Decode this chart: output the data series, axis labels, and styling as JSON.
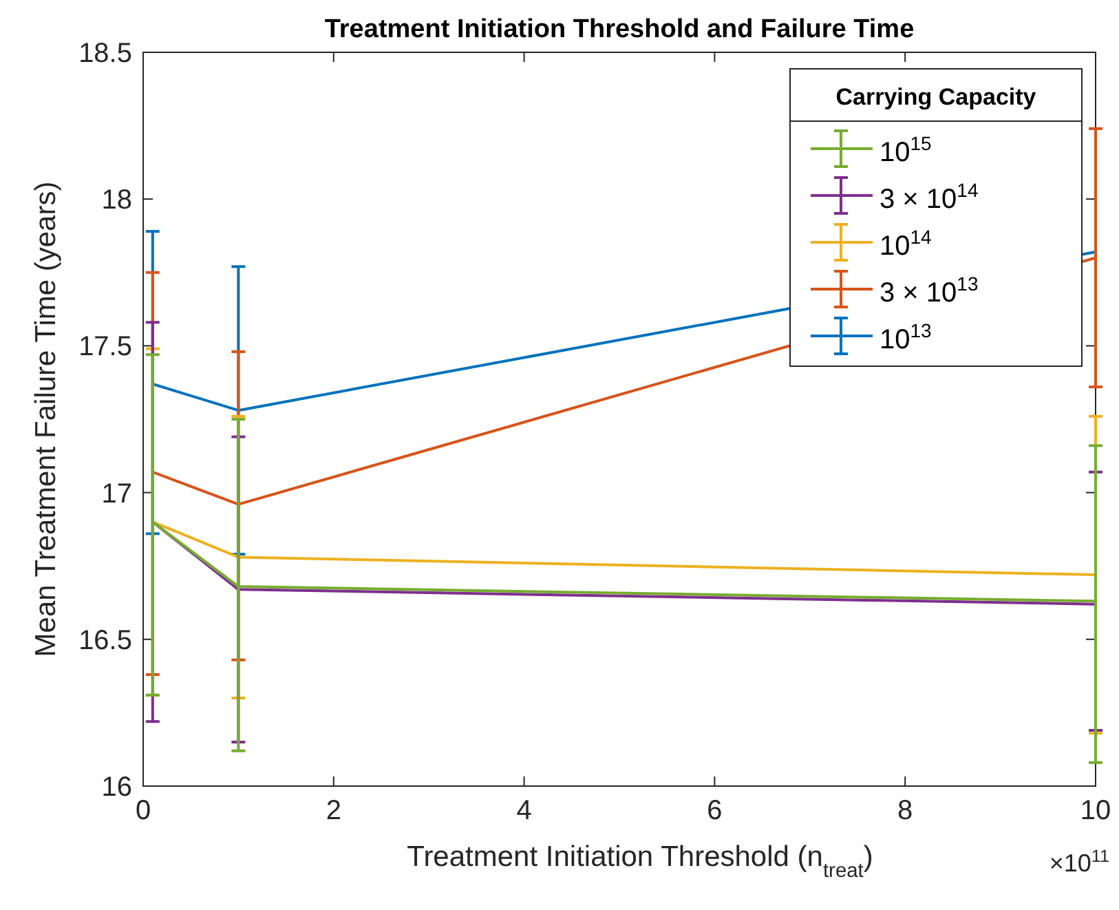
{
  "chart_data": {
    "type": "line",
    "title": "Treatment Initiation Threshold and Failure Time",
    "xlabel": "Treatment Initiation Threshold (n$_{treat}$)",
    "ylabel": "Mean Treatment Failure Time (years)",
    "legend_title": "Carrying Capacity",
    "annotations": [
      "×10$^{11}$"
    ],
    "x": [
      0.1,
      1,
      10
    ],
    "xlim": [
      0,
      10
    ],
    "xticks": [
      0,
      2,
      4,
      6,
      8,
      10
    ],
    "ylim": [
      16,
      18.5
    ],
    "yticks": [
      16,
      16.5,
      17,
      17.5,
      18,
      18.5
    ],
    "grid": false,
    "legend": "top right",
    "marker": "none",
    "line_style": "solid",
    "series": [
      {
        "name": "10$^{15}$",
        "color": "#77ac30",
        "values": [
          16.9,
          16.68,
          16.63
        ],
        "errors": [
          [
            16.31,
            17.47
          ],
          [
            16.12,
            17.25
          ],
          [
            16.08,
            17.16
          ]
        ]
      },
      {
        "name": "3 × 10$^{14}$",
        "color": "#7e2f8e",
        "values": [
          16.9,
          16.67,
          16.62
        ],
        "errors": [
          [
            16.22,
            17.58
          ],
          [
            16.15,
            17.19
          ],
          [
            16.19,
            17.07
          ]
        ]
      },
      {
        "name": "10$^{14}$",
        "color": "#edb120",
        "values": [
          16.9,
          16.78,
          16.72
        ],
        "errors": [
          [
            16.31,
            17.49
          ],
          [
            16.3,
            17.26
          ],
          [
            16.18,
            17.26
          ]
        ]
      },
      {
        "name": "3 × 10$^{13}$",
        "color": "#d95319",
        "values": [
          17.07,
          16.96,
          17.8
        ],
        "errors": [
          [
            16.38,
            17.75
          ],
          [
            16.43,
            17.48
          ],
          [
            17.36,
            18.24
          ]
        ]
      },
      {
        "name": "10$^{13}$",
        "color": "#0072bd",
        "values": [
          17.37,
          17.28,
          17.82
        ],
        "errors": [
          [
            16.86,
            17.89
          ],
          [
            16.79,
            17.77
          ],
          null
        ]
      }
    ]
  }
}
